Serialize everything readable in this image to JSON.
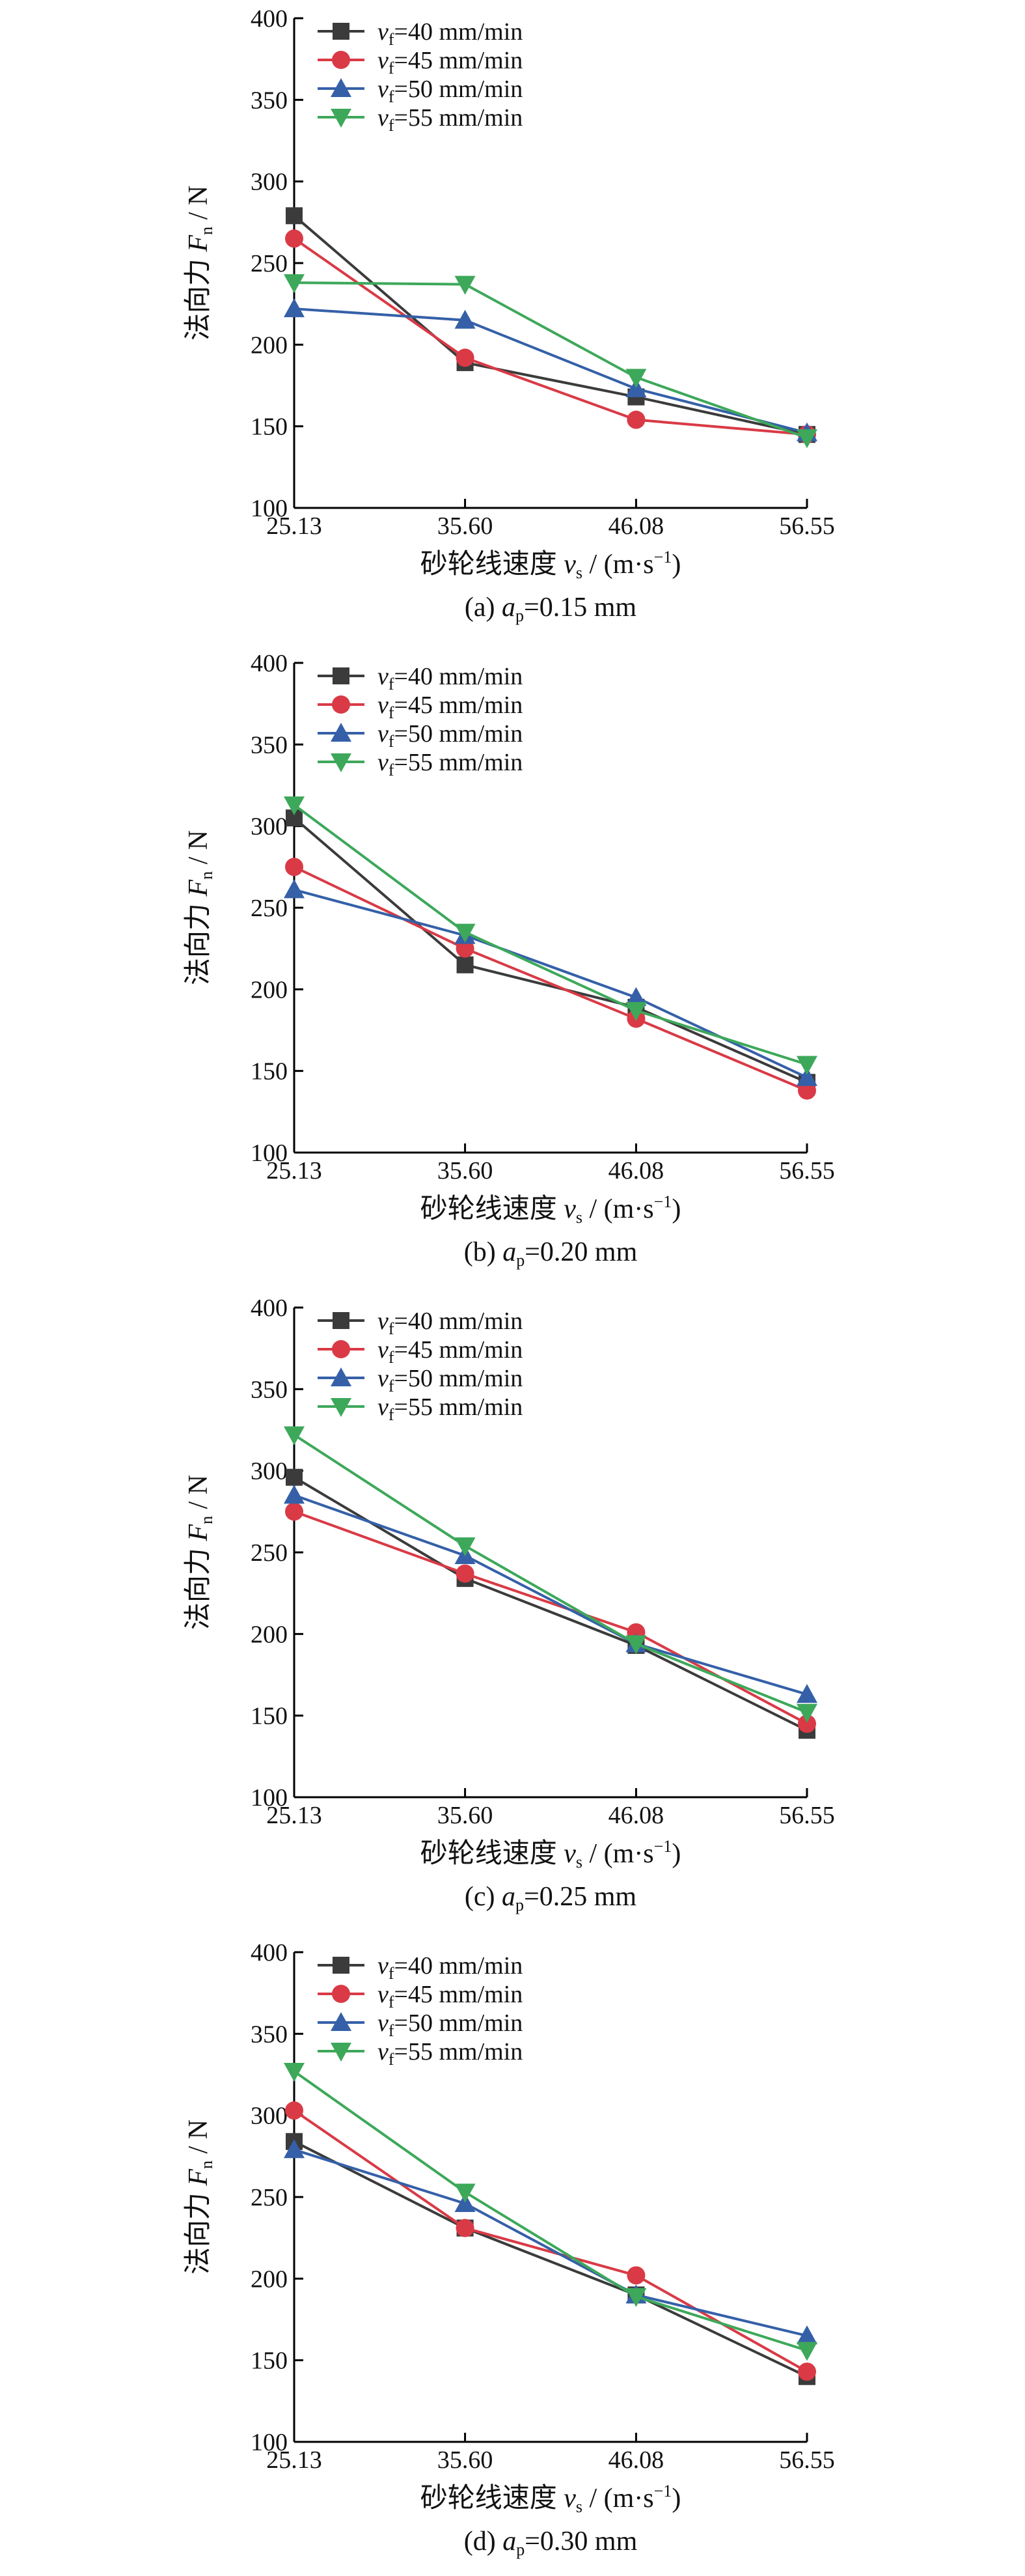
{
  "chart_data": [
    {
      "type": "line",
      "caption": {
        "label": "(a) ",
        "var": "a",
        "sub": "p",
        "value": "=0.15 mm"
      },
      "xlabel": {
        "text": "砂轮线速度 ",
        "var": "v",
        "sub": "s",
        "unit": " / (m·s",
        "sup": "−1",
        "close": ")"
      },
      "ylabel": {
        "text": "法向力 ",
        "var": "F",
        "sub": "n",
        "unit": " / N"
      },
      "x": [
        25.13,
        35.6,
        46.08,
        56.55
      ],
      "xticks": [
        "25.13",
        "35.60",
        "46.08",
        "56.55"
      ],
      "ylim": [
        100,
        400
      ],
      "yticks": [
        100,
        150,
        200,
        250,
        300,
        350,
        400
      ],
      "grid": false,
      "legend_position": "top-left",
      "series": [
        {
          "name": "=40 mm/min",
          "values": [
            279,
            189,
            168,
            145
          ]
        },
        {
          "name": "=45 mm/min",
          "values": [
            265,
            192,
            154,
            145
          ]
        },
        {
          "name": "=50 mm/min",
          "values": [
            222,
            215,
            173,
            146
          ]
        },
        {
          "name": "=55 mm/min",
          "values": [
            238,
            237,
            180,
            143
          ]
        }
      ]
    },
    {
      "type": "line",
      "caption": {
        "label": "(b) ",
        "var": "a",
        "sub": "p",
        "value": "=0.20 mm"
      },
      "xlabel": {
        "text": "砂轮线速度 ",
        "var": "v",
        "sub": "s",
        "unit": " / (m·s",
        "sup": "−1",
        "close": ")"
      },
      "ylabel": {
        "text": "法向力 ",
        "var": "F",
        "sub": "n",
        "unit": " / N"
      },
      "x": [
        25.13,
        35.6,
        46.08,
        56.55
      ],
      "xticks": [
        "25.13",
        "35.60",
        "46.08",
        "56.55"
      ],
      "ylim": [
        100,
        400
      ],
      "yticks": [
        100,
        150,
        200,
        250,
        300,
        350,
        400
      ],
      "grid": false,
      "legend_position": "top-left",
      "series": [
        {
          "name": "=40 mm/min",
          "values": [
            305,
            215,
            189,
            143
          ]
        },
        {
          "name": "=45 mm/min",
          "values": [
            275,
            225,
            182,
            138
          ]
        },
        {
          "name": "=50 mm/min",
          "values": [
            261,
            233,
            195,
            146
          ]
        },
        {
          "name": "=55 mm/min",
          "values": [
            313,
            235,
            187,
            154
          ]
        }
      ]
    },
    {
      "type": "line",
      "caption": {
        "label": "(c) ",
        "var": "a",
        "sub": "p",
        "value": "=0.25 mm"
      },
      "xlabel": {
        "text": "砂轮线速度 ",
        "var": "v",
        "sub": "s",
        "unit": " / (m·s",
        "sup": "−1",
        "close": ")"
      },
      "ylabel": {
        "text": "法向力 ",
        "var": "F",
        "sub": "n",
        "unit": " / N"
      },
      "x": [
        25.13,
        35.6,
        46.08,
        56.55
      ],
      "xticks": [
        "25.13",
        "35.60",
        "46.08",
        "56.55"
      ],
      "ylim": [
        100,
        400
      ],
      "yticks": [
        100,
        150,
        200,
        250,
        300,
        350,
        400
      ],
      "grid": false,
      "legend_position": "top-left",
      "series": [
        {
          "name": "=40 mm/min",
          "values": [
            296,
            234,
            193,
            141
          ]
        },
        {
          "name": "=45 mm/min",
          "values": [
            275,
            237,
            201,
            145
          ]
        },
        {
          "name": "=50 mm/min",
          "values": [
            285,
            248,
            194,
            163
          ]
        },
        {
          "name": "=55 mm/min",
          "values": [
            322,
            254,
            194,
            152
          ]
        }
      ]
    },
    {
      "type": "line",
      "caption": {
        "label": "(d) ",
        "var": "a",
        "sub": "p",
        "value": "=0.30 mm"
      },
      "xlabel": {
        "text": "砂轮线速度 ",
        "var": "v",
        "sub": "s",
        "unit": " / (m·s",
        "sup": "−1",
        "close": ")"
      },
      "ylabel": {
        "text": "法向力 ",
        "var": "F",
        "sub": "n",
        "unit": " / N"
      },
      "x": [
        25.13,
        35.6,
        46.08,
        56.55
      ],
      "xticks": [
        "25.13",
        "35.60",
        "46.08",
        "56.55"
      ],
      "ylim": [
        100,
        400
      ],
      "yticks": [
        100,
        150,
        200,
        250,
        300,
        350,
        400
      ],
      "grid": false,
      "legend_position": "top-left",
      "series": [
        {
          "name": "=40 mm/min",
          "values": [
            284,
            231,
            190,
            140
          ]
        },
        {
          "name": "=45 mm/min",
          "values": [
            303,
            231,
            202,
            143
          ]
        },
        {
          "name": "=50 mm/min",
          "values": [
            279,
            246,
            190,
            165
          ]
        },
        {
          "name": "=55 mm/min",
          "values": [
            327,
            253,
            189,
            156
          ]
        }
      ]
    }
  ],
  "legend_var": "v",
  "legend_sub": "f",
  "styles": {
    "series_colors": [
      "#3b3b3b",
      "#d93a46",
      "#3560a8",
      "#3da85a"
    ],
    "markers": [
      "square",
      "circle",
      "triangle-up",
      "triangle-down"
    ]
  }
}
